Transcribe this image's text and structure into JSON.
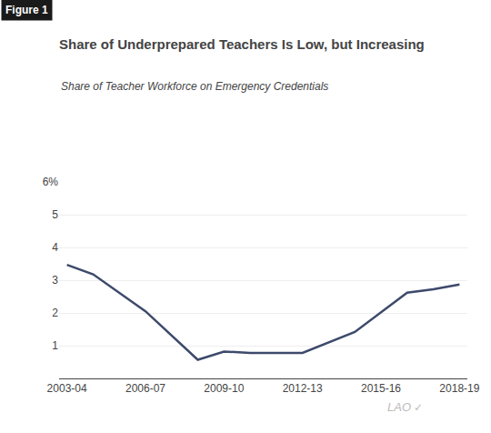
{
  "chart_data": {
    "type": "line",
    "title": "Share of Underprepared Teachers Is Low, but Increasing",
    "subtitle": "Share of Teacher Workforce on Emergency Credentials",
    "annotations": [
      "Figure 1",
      "LAO",
      "✓"
    ],
    "x": [
      0,
      1,
      3,
      5,
      6,
      7,
      9,
      11,
      13,
      14,
      15
    ],
    "values": [
      3.47,
      3.18,
      2.05,
      0.57,
      0.82,
      0.78,
      0.78,
      1.42,
      2.62,
      2.72,
      2.87
    ],
    "color": "#3d4a6b",
    "xlim": [
      -0.3,
      15.3
    ],
    "xticks": [
      {
        "value": 0,
        "label": "2003-04"
      },
      {
        "value": 3,
        "label": "2006-07"
      },
      {
        "value": 6,
        "label": "2009-10"
      },
      {
        "value": 9,
        "label": "2012-13"
      },
      {
        "value": 12,
        "label": "2015-16"
      },
      {
        "value": 15,
        "label": "2018-19"
      }
    ],
    "ylim": [
      0,
      6
    ],
    "yticks": [
      1,
      2,
      3,
      4,
      5,
      {
        "value": 6,
        "label": "6%"
      }
    ],
    "grid": true
  }
}
